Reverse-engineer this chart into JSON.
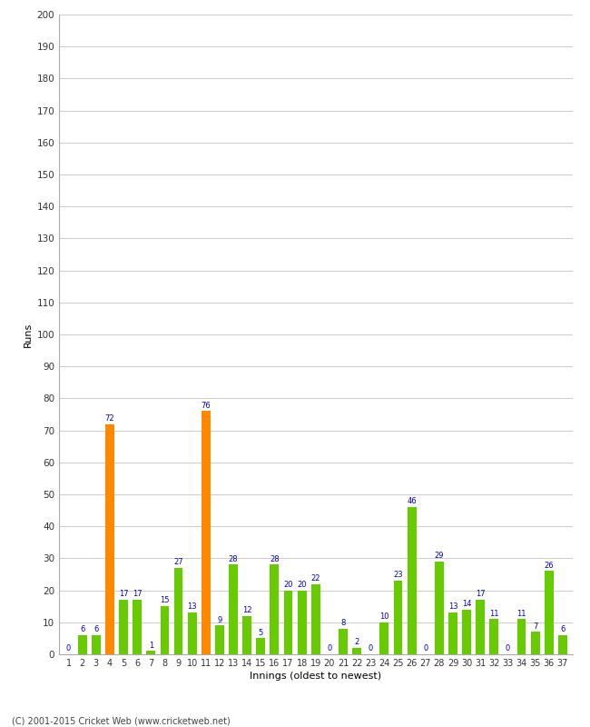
{
  "xlabel": "Innings (oldest to newest)",
  "ylabel": "Runs",
  "footer": "(C) 2001-2015 Cricket Web (www.cricketweb.net)",
  "ylim": [
    0,
    200
  ],
  "yticks": [
    0,
    10,
    20,
    30,
    40,
    50,
    60,
    70,
    80,
    90,
    100,
    110,
    120,
    130,
    140,
    150,
    160,
    170,
    180,
    190,
    200
  ],
  "innings": [
    1,
    2,
    3,
    4,
    5,
    6,
    7,
    8,
    9,
    10,
    11,
    12,
    13,
    14,
    15,
    16,
    17,
    18,
    19,
    20,
    21,
    22,
    23,
    24,
    25,
    26,
    27,
    28,
    29,
    30,
    31,
    32,
    33,
    34,
    35,
    36,
    37
  ],
  "values": [
    0,
    6,
    6,
    72,
    17,
    17,
    1,
    15,
    27,
    13,
    76,
    9,
    28,
    12,
    5,
    28,
    20,
    20,
    22,
    0,
    8,
    2,
    0,
    10,
    23,
    46,
    0,
    29,
    13,
    14,
    17,
    11,
    0,
    11,
    7,
    26,
    6
  ],
  "colors": [
    "#66cc00",
    "#66cc00",
    "#66cc00",
    "#ff8800",
    "#66cc00",
    "#66cc00",
    "#66cc00",
    "#66cc00",
    "#66cc00",
    "#66cc00",
    "#ff8800",
    "#66cc00",
    "#66cc00",
    "#66cc00",
    "#66cc00",
    "#66cc00",
    "#66cc00",
    "#66cc00",
    "#66cc00",
    "#66cc00",
    "#66cc00",
    "#66cc00",
    "#66cc00",
    "#66cc00",
    "#66cc00",
    "#66cc00",
    "#66cc00",
    "#66cc00",
    "#66cc00",
    "#66cc00",
    "#66cc00",
    "#66cc00",
    "#66cc00",
    "#66cc00",
    "#66cc00",
    "#66cc00",
    "#66cc00"
  ],
  "label_color": "#0000cc",
  "bg_color": "#ffffff",
  "grid_color": "#cccccc",
  "axis_color": "#aaaaaa",
  "bar_width": 0.65,
  "figsize": [
    6.5,
    8.0
  ],
  "dpi": 100
}
